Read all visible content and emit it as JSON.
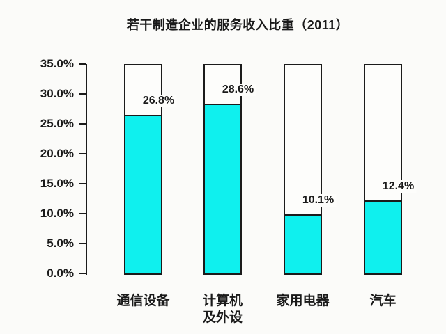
{
  "accent_color": "#0ff0ee",
  "outline_color": "#1b1b1b",
  "background_color": "#fbfbf9",
  "chart_data": {
    "type": "bar",
    "title": "若干制造企业的服务收入比重（2011）",
    "xlabel": "",
    "ylabel": "",
    "categories": [
      "通信设备",
      "计算机及外设",
      "家用电器",
      "汽车"
    ],
    "category_lines": [
      [
        "通信设备"
      ],
      [
        "计算机",
        "及外设"
      ],
      [
        "家用电器"
      ],
      [
        "汽车"
      ]
    ],
    "values": [
      26.8,
      28.6,
      10.1,
      12.4
    ],
    "value_labels": [
      "26.8%",
      "28.6%",
      "10.1%",
      "12.4%"
    ],
    "ylim": [
      0,
      35
    ],
    "ytick_step": 5,
    "ytick_labels": [
      "0.0%",
      "5.0%",
      "10.0%",
      "15.0%",
      "20.0%",
      "25.0%",
      "30.0%",
      "35.0%"
    ],
    "grid": false,
    "legend": false,
    "bar_fill_color": "#0ff0ee",
    "bar_outline_color": "#1b1b1b",
    "outline_height_percent": 35
  }
}
